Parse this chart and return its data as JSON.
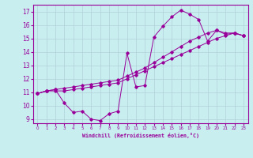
{
  "xlabel": "Windchill (Refroidissement éolien,°C)",
  "bg_color": "#c8eef0",
  "line_color": "#990099",
  "grid_color": "#b0d0d8",
  "xmin": -0.5,
  "xmax": 23.5,
  "ymin": 8.7,
  "ymax": 17.5,
  "xticks": [
    0,
    1,
    2,
    3,
    4,
    5,
    6,
    7,
    8,
    9,
    10,
    11,
    12,
    13,
    14,
    15,
    16,
    17,
    18,
    19,
    20,
    21,
    22,
    23
  ],
  "yticks": [
    9,
    10,
    11,
    12,
    13,
    14,
    15,
    16,
    17
  ],
  "line1_x": [
    0,
    1,
    2,
    3,
    4,
    5,
    6,
    7,
    8,
    9,
    10,
    11,
    12,
    13,
    14,
    15,
    16,
    17,
    18,
    19,
    20,
    21,
    22,
    23
  ],
  "line1_y": [
    10.9,
    11.1,
    11.2,
    10.2,
    9.5,
    9.6,
    9.0,
    8.9,
    9.4,
    9.6,
    13.9,
    11.4,
    11.5,
    15.1,
    15.9,
    16.6,
    17.1,
    16.8,
    16.4,
    14.8,
    15.6,
    15.4,
    15.4,
    15.2
  ],
  "line2_x": [
    0,
    1,
    2,
    3,
    4,
    5,
    6,
    7,
    8,
    9,
    10,
    11,
    12,
    13,
    14,
    15,
    16,
    17,
    18,
    19,
    20,
    21,
    22,
    23
  ],
  "line2_y": [
    10.9,
    11.1,
    11.1,
    11.1,
    11.2,
    11.3,
    11.4,
    11.5,
    11.6,
    11.7,
    12.0,
    12.3,
    12.6,
    12.9,
    13.2,
    13.5,
    13.8,
    14.1,
    14.4,
    14.7,
    15.0,
    15.2,
    15.4,
    15.2
  ],
  "line3_x": [
    0,
    1,
    2,
    3,
    4,
    5,
    6,
    7,
    8,
    9,
    10,
    11,
    12,
    13,
    14,
    15,
    16,
    17,
    18,
    19,
    20,
    21,
    22,
    23
  ],
  "line3_y": [
    10.9,
    11.1,
    11.2,
    11.3,
    11.4,
    11.5,
    11.6,
    11.7,
    11.8,
    11.9,
    12.2,
    12.5,
    12.8,
    13.2,
    13.6,
    14.0,
    14.4,
    14.8,
    15.1,
    15.4,
    15.6,
    15.3,
    15.4,
    15.2
  ],
  "figsize": [
    3.2,
    2.0
  ],
  "dpi": 100
}
